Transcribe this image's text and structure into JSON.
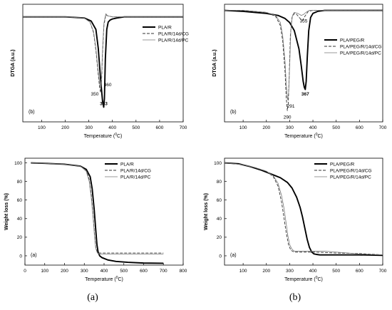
{
  "captions": {
    "left": "(a)",
    "right": "(b)"
  },
  "chart_data": [
    {
      "id": "a_dtga",
      "type": "line",
      "xlabel": "Temperature (°C)",
      "ylabel": "DTGA (a.u.)",
      "xlim": [
        20,
        700
      ],
      "ylim": [
        -1.0,
        0.12
      ],
      "xticks": [
        100,
        200,
        300,
        400,
        500,
        600,
        700
      ],
      "yticks": [],
      "legend": "right",
      "panel_tag": "(b)",
      "annotations": [
        {
          "text": "360",
          "x": 380,
          "y": -0.66
        },
        {
          "text": "350",
          "x": 325,
          "y": -0.75
        },
        {
          "text": "363",
          "x": 363,
          "y": -0.84,
          "bold": true
        }
      ],
      "series": [
        {
          "name": "PLA/R",
          "style": "bold",
          "x": [
            20,
            200,
            280,
            310,
            330,
            340,
            350,
            358,
            363,
            366,
            370,
            376,
            382,
            390,
            400,
            420,
            450,
            500,
            600,
            700
          ],
          "y": [
            0,
            0,
            -0.01,
            -0.04,
            -0.12,
            -0.3,
            -0.6,
            -0.8,
            -0.86,
            -0.78,
            -0.4,
            -0.12,
            -0.05,
            -0.03,
            -0.02,
            -0.01,
            0,
            0,
            0,
            0
          ]
        },
        {
          "name": "PLA/R/14d/CG",
          "style": "dash",
          "x": [
            20,
            200,
            280,
            305,
            320,
            330,
            340,
            346,
            350,
            354,
            358,
            364,
            372,
            380,
            400,
            450,
            700
          ],
          "y": [
            0,
            0,
            -0.01,
            -0.05,
            -0.15,
            -0.32,
            -0.55,
            -0.68,
            -0.72,
            -0.6,
            -0.35,
            -0.08,
            0.02,
            0.01,
            0,
            0,
            0
          ]
        },
        {
          "name": "PLA/R/14d/PC",
          "style": "thin",
          "x": [
            20,
            200,
            280,
            305,
            320,
            330,
            340,
            346,
            350,
            354,
            358,
            364,
            372,
            380,
            400,
            450,
            700
          ],
          "y": [
            0,
            0,
            -0.01,
            -0.05,
            -0.14,
            -0.3,
            -0.52,
            -0.64,
            -0.68,
            -0.57,
            -0.32,
            -0.06,
            0.03,
            0.01,
            0,
            0,
            0
          ]
        }
      ]
    },
    {
      "id": "b_dtga",
      "type": "line",
      "xlabel": "Temperature (°C)",
      "ylabel": "DTGA (a.u.)",
      "xlim": [
        20,
        700
      ],
      "ylim": [
        -1.1,
        0.06
      ],
      "xticks": [
        100,
        200,
        300,
        400,
        500,
        600,
        700
      ],
      "yticks": [],
      "legend": "right",
      "panel_tag": "(b)",
      "annotations": [
        {
          "text": "355",
          "x": 360,
          "y": -0.12
        },
        {
          "text": "367",
          "x": 367,
          "y": -0.84,
          "bold": true
        },
        {
          "text": "291",
          "x": 305,
          "y": -0.96
        },
        {
          "text": "290",
          "x": 290,
          "y": -1.07
        }
      ],
      "series": [
        {
          "name": "PLA/PEG/R",
          "style": "bold",
          "x": [
            20,
            100,
            150,
            200,
            250,
            280,
            300,
            320,
            340,
            350,
            358,
            363,
            367,
            371,
            376,
            382,
            390,
            400,
            420,
            450,
            500,
            600,
            700
          ],
          "y": [
            0,
            -0.01,
            -0.02,
            -0.03,
            -0.05,
            -0.08,
            -0.12,
            -0.2,
            -0.38,
            -0.55,
            -0.7,
            -0.76,
            -0.78,
            -0.7,
            -0.45,
            -0.2,
            -0.07,
            -0.03,
            -0.01,
            0,
            0,
            0,
            0
          ]
        },
        {
          "name": "PLA/PEG/R/14d/CG",
          "style": "dash",
          "x": [
            20,
            100,
            150,
            200,
            240,
            260,
            270,
            280,
            285,
            290,
            294,
            298,
            303,
            310,
            320,
            330,
            345,
            355,
            365,
            380,
            400,
            700
          ],
          "y": [
            0,
            0,
            -0.01,
            -0.02,
            -0.06,
            -0.15,
            -0.3,
            -0.6,
            -0.85,
            -0.99,
            -0.92,
            -0.65,
            -0.25,
            -0.07,
            -0.03,
            -0.04,
            -0.08,
            -0.1,
            -0.06,
            -0.01,
            0,
            0
          ]
        },
        {
          "name": "PLA/PEG/R/14d/PC",
          "style": "thin",
          "x": [
            20,
            100,
            150,
            200,
            240,
            260,
            270,
            280,
            285,
            291,
            296,
            300,
            305,
            312,
            320,
            335,
            350,
            360,
            370,
            385,
            400,
            700
          ],
          "y": [
            0,
            0,
            -0.01,
            -0.02,
            -0.05,
            -0.12,
            -0.25,
            -0.5,
            -0.72,
            -0.88,
            -0.8,
            -0.55,
            -0.2,
            -0.05,
            -0.02,
            -0.03,
            -0.05,
            -0.04,
            -0.02,
            0,
            0,
            0
          ]
        }
      ]
    },
    {
      "id": "a_tga",
      "type": "line",
      "xlabel": "Temperature (°C)",
      "ylabel": "Weight loss (%)",
      "xlim": [
        0,
        800
      ],
      "ylim": [
        -10,
        105
      ],
      "xticks": [
        0,
        100,
        200,
        300,
        400,
        500,
        600,
        700,
        800
      ],
      "yticks": [
        0,
        20,
        40,
        60,
        80,
        100
      ],
      "legend": "top-right",
      "panel_tag": "(a)",
      "annotations": [],
      "series": [
        {
          "name": "PLA/R",
          "style": "bold",
          "x": [
            30,
            100,
            200,
            280,
            310,
            330,
            340,
            350,
            358,
            364,
            370,
            378,
            390,
            420,
            460,
            520,
            600,
            700
          ],
          "y": [
            100,
            99.5,
            98.5,
            96.5,
            93,
            85,
            72,
            50,
            28,
            12,
            4,
            0,
            -2,
            -4.5,
            -6,
            -7,
            -7.8,
            -8
          ]
        },
        {
          "name": "PLA/R/14d/CG",
          "style": "dash",
          "x": [
            30,
            100,
            200,
            280,
            310,
            325,
            335,
            345,
            352,
            358,
            366,
            376,
            390,
            500,
            600,
            700
          ],
          "y": [
            100,
            99.5,
            98.5,
            96.5,
            92,
            82,
            66,
            42,
            22,
            9,
            4,
            3,
            3,
            3,
            3,
            3
          ]
        },
        {
          "name": "PLA/R/14d/PC",
          "style": "thin",
          "x": [
            30,
            100,
            200,
            280,
            310,
            325,
            335,
            345,
            352,
            358,
            366,
            376,
            390,
            500,
            600,
            700
          ],
          "y": [
            100,
            99.5,
            98.5,
            96.5,
            91,
            80,
            63,
            40,
            20,
            8,
            3,
            2,
            2,
            2,
            2,
            2
          ]
        }
      ]
    },
    {
      "id": "b_tga",
      "type": "line",
      "xlabel": "Temperature (°C)",
      "ylabel": "Weight loss (%)",
      "xlim": [
        20,
        700
      ],
      "ylim": [
        -10,
        105
      ],
      "xticks": [
        100,
        200,
        300,
        400,
        500,
        600,
        700
      ],
      "yticks": [
        0,
        20,
        40,
        60,
        80,
        100
      ],
      "legend": "top-right",
      "panel_tag": "(a)",
      "annotations": [],
      "series": [
        {
          "name": "PLA/PEG/R",
          "style": "bold",
          "x": [
            20,
            80,
            130,
            180,
            220,
            260,
            290,
            310,
            330,
            345,
            355,
            365,
            375,
            385,
            395,
            405,
            415,
            430,
            450,
            500,
            600,
            700
          ],
          "y": [
            100,
            99,
            96,
            92,
            88,
            84,
            79,
            73,
            63,
            52,
            42,
            30,
            18,
            9,
            4,
            2,
            1.5,
            1,
            1,
            1,
            1,
            0.5
          ]
        },
        {
          "name": "PLA/PEG/R/14d/CG",
          "style": "dash",
          "x": [
            20,
            100,
            150,
            200,
            230,
            250,
            265,
            275,
            285,
            295,
            305,
            320,
            400,
            500,
            600,
            700
          ],
          "y": [
            100,
            98,
            95,
            91,
            85,
            75,
            58,
            42,
            25,
            12,
            6,
            4,
            4,
            3,
            2.5,
            1
          ]
        },
        {
          "name": "PLA/PEG/R/14d/PC",
          "style": "thin",
          "x": [
            20,
            100,
            150,
            200,
            230,
            250,
            265,
            275,
            285,
            292,
            300,
            310,
            320,
            400,
            450,
            500,
            550,
            600,
            700
          ],
          "y": [
            100,
            98,
            95,
            91,
            86,
            78,
            65,
            52,
            35,
            22,
            12,
            7,
            5,
            5,
            5,
            4,
            3,
            2,
            1
          ]
        }
      ]
    }
  ]
}
